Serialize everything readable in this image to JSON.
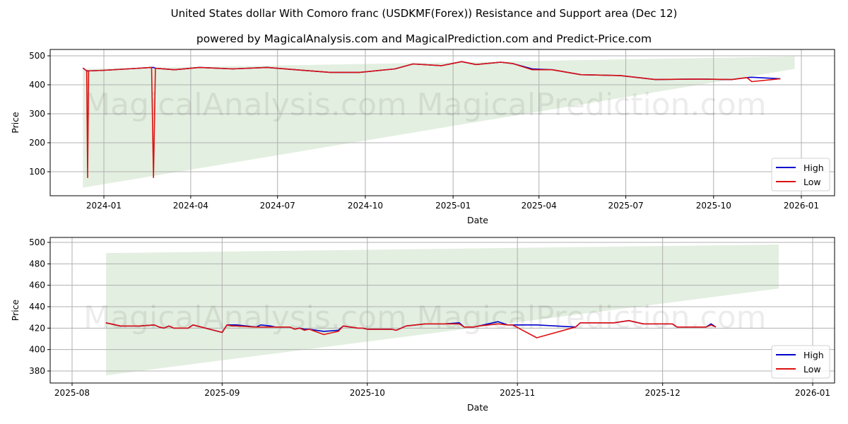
{
  "header": {
    "title": "United States dollar With Comoro franc (USDKMF(Forex)) Resistance and Support area (Dec 12)",
    "subtitle": "powered by MagicalAnalysis.com and MagicalPrediction.com and Predict-Price.com"
  },
  "watermarks": [
    "MagicalAnalysis.com",
    "MagicalPrediction.com"
  ],
  "colors": {
    "high": "#0000cc",
    "low": "#dd1111",
    "band": "#e3efe0",
    "grid": "#b0b0b0"
  },
  "chart_data": [
    {
      "type": "line",
      "title": "",
      "xlabel": "Date",
      "ylabel": "Price",
      "ylim": [
        20,
        515
      ],
      "xticks": [
        "2024-01",
        "2024-04",
        "2024-07",
        "2024-10",
        "2025-01",
        "2025-04",
        "2025-07",
        "2025-10",
        "2026-01"
      ],
      "yticks": [
        100,
        200,
        300,
        400,
        500
      ],
      "grid": true,
      "legend": {
        "position": "lower right",
        "entries": [
          "High",
          "Low"
        ]
      },
      "band": {
        "x_start": "2023-12-10",
        "x_end": "2025-12-25",
        "upper_start": 455,
        "upper_end": 498,
        "lower_start": 45,
        "lower_end": 455
      },
      "x": [
        "2023-12-10",
        "2023-12-14",
        "2023-12-15",
        "2023-12-16",
        "2024-01-01",
        "2024-02-01",
        "2024-02-20",
        "2024-02-22",
        "2024-02-24",
        "2024-03-15",
        "2024-04-10",
        "2024-05-15",
        "2024-06-20",
        "2024-07-20",
        "2024-08-25",
        "2024-09-25",
        "2024-11-01",
        "2024-11-20",
        "2024-12-20",
        "2025-01-10",
        "2025-01-25",
        "2025-02-20",
        "2025-03-05",
        "2025-03-25",
        "2025-04-15",
        "2025-05-15",
        "2025-06-25",
        "2025-08-01",
        "2025-09-15",
        "2025-10-20",
        "2025-11-05",
        "2025-11-10",
        "2025-12-10"
      ],
      "series": [
        {
          "name": "High",
          "values": [
            458,
            448,
            448,
            448,
            450,
            456,
            460,
            460,
            457,
            452,
            460,
            455,
            460,
            452,
            443,
            443,
            455,
            472,
            466,
            480,
            470,
            478,
            473,
            455,
            452,
            435,
            432,
            418,
            420,
            418,
            425,
            426,
            421
          ]
        },
        {
          "name": "Low",
          "values": [
            458,
            448,
            80,
            448,
            450,
            456,
            460,
            80,
            457,
            452,
            460,
            455,
            460,
            452,
            443,
            443,
            455,
            472,
            466,
            480,
            470,
            478,
            473,
            452,
            452,
            435,
            432,
            418,
            420,
            418,
            425,
            411,
            421
          ]
        }
      ]
    },
    {
      "type": "line",
      "title": "",
      "xlabel": "Date",
      "ylabel": "Price",
      "ylim": [
        368,
        505
      ],
      "xticks": [
        "2025-08",
        "2025-09",
        "2025-10",
        "2025-11",
        "2025-12",
        "2026-01"
      ],
      "yticks": [
        380,
        400,
        420,
        440,
        460,
        480,
        500
      ],
      "grid": true,
      "legend": {
        "position": "lower right",
        "entries": [
          "High",
          "Low"
        ]
      },
      "band": {
        "x_start": "2025-08-08",
        "x_end": "2025-12-25",
        "upper_start": 490,
        "upper_end": 498,
        "lower_start": 376,
        "lower_end": 457
      },
      "x": [
        "2025-08-08",
        "2025-08-11",
        "2025-08-14",
        "2025-08-15",
        "2025-08-18",
        "2025-08-19",
        "2025-08-20",
        "2025-08-21",
        "2025-08-22",
        "2025-08-25",
        "2025-08-26",
        "2025-09-01",
        "2025-09-02",
        "2025-09-03",
        "2025-09-04",
        "2025-09-08",
        "2025-09-09",
        "2025-09-11",
        "2025-09-12",
        "2025-09-15",
        "2025-09-16",
        "2025-09-17",
        "2025-09-18",
        "2025-09-19",
        "2025-09-22",
        "2025-09-25",
        "2025-09-26",
        "2025-09-29",
        "2025-09-30",
        "2025-10-01",
        "2025-10-03",
        "2025-10-06",
        "2025-10-07",
        "2025-10-09",
        "2025-10-13",
        "2025-10-17",
        "2025-10-20",
        "2025-10-21",
        "2025-10-23",
        "2025-10-24",
        "2025-10-28",
        "2025-10-30",
        "2025-10-31",
        "2025-11-05",
        "2025-11-13",
        "2025-11-14",
        "2025-11-18",
        "2025-11-21",
        "2025-11-24",
        "2025-11-27",
        "2025-11-28",
        "2025-12-03",
        "2025-12-04",
        "2025-12-05",
        "2025-12-10",
        "2025-12-11",
        "2025-12-12"
      ],
      "series": [
        {
          "name": "High",
          "values": [
            425,
            422,
            422,
            422,
            423,
            421,
            420,
            422,
            420,
            420,
            423,
            416,
            423,
            423,
            423,
            421,
            423,
            422,
            421,
            421,
            419,
            420,
            419,
            419,
            417,
            418,
            422,
            420,
            420,
            419,
            419,
            419,
            418,
            422,
            424,
            424,
            425,
            421,
            421,
            422,
            426,
            423,
            423,
            423,
            421,
            425,
            425,
            425,
            427,
            424,
            424,
            424,
            421,
            421,
            421,
            424,
            421
          ]
        },
        {
          "name": "Low",
          "values": [
            425,
            422,
            422,
            422,
            423,
            421,
            420,
            422,
            420,
            420,
            423,
            416,
            423,
            422,
            422,
            421,
            421,
            421,
            421,
            421,
            419,
            420,
            418,
            419,
            414,
            417,
            422,
            420,
            420,
            419,
            419,
            419,
            418,
            422,
            424,
            424,
            424,
            421,
            421,
            422,
            424,
            423,
            423,
            411,
            421,
            425,
            425,
            425,
            427,
            424,
            424,
            424,
            421,
            421,
            421,
            423,
            421
          ]
        }
      ]
    }
  ],
  "legend": {
    "high": "High",
    "low": "Low"
  }
}
